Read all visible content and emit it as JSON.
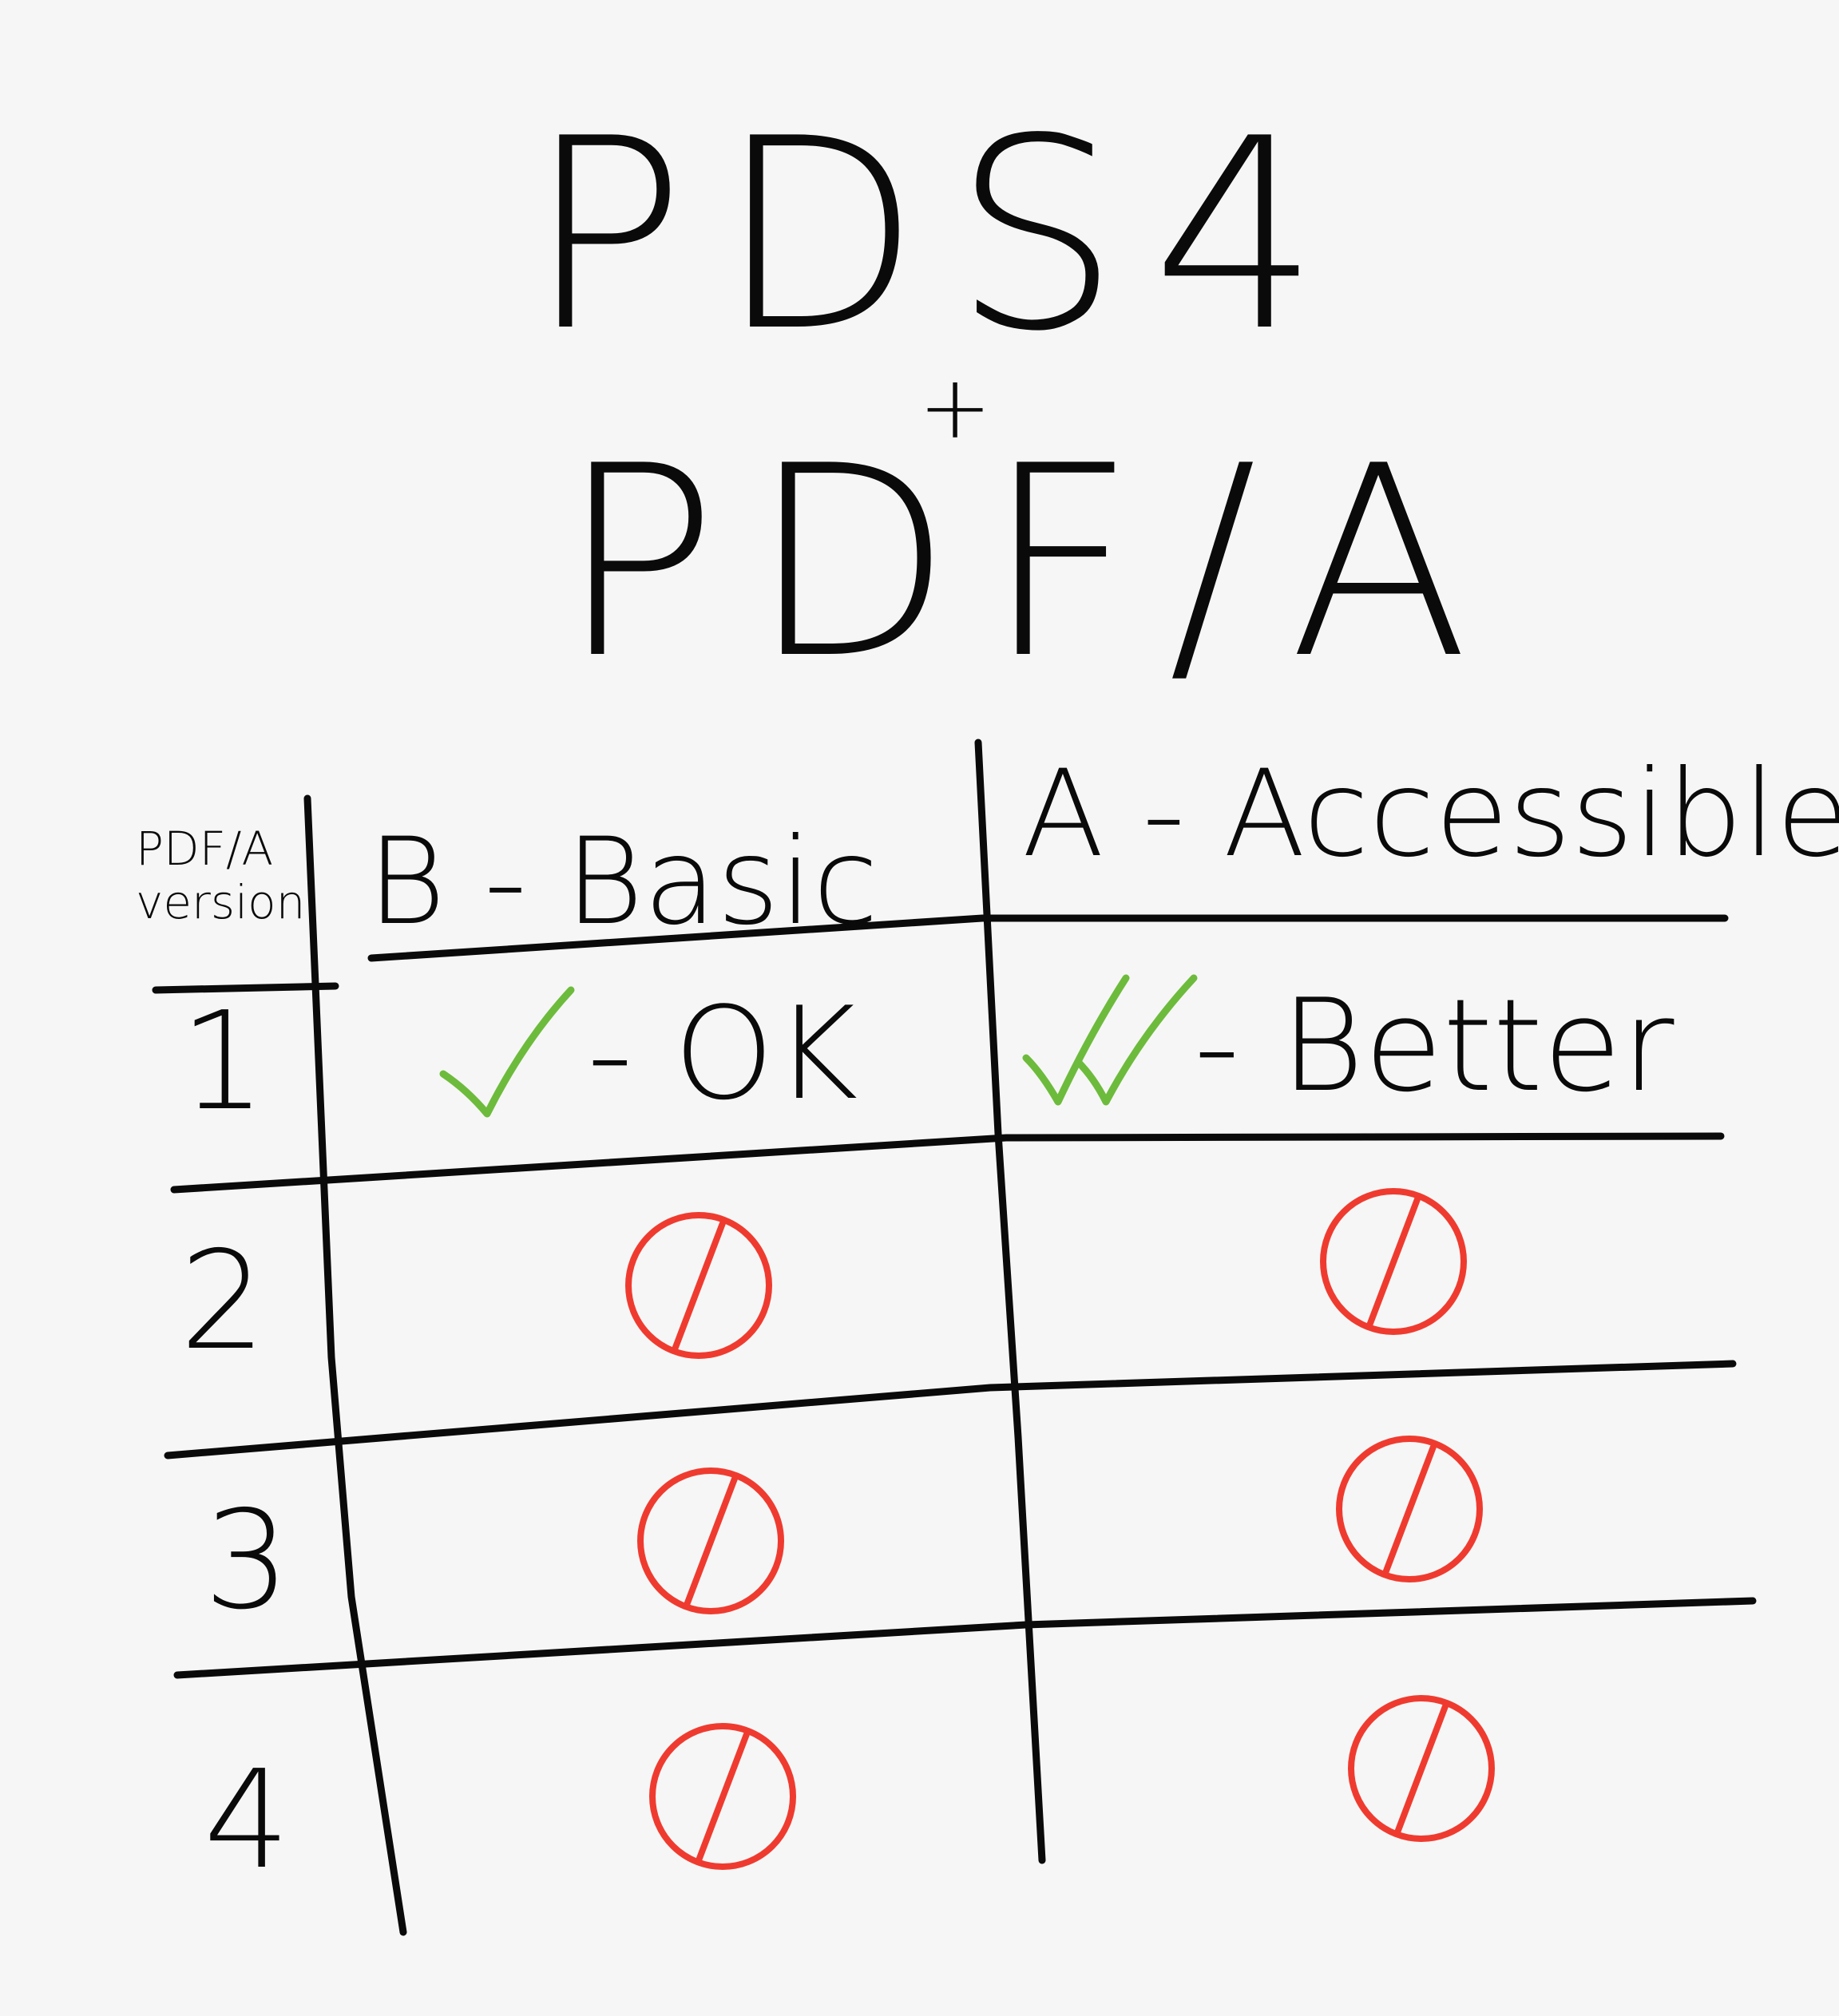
{
  "title": {
    "line1": "PDS4",
    "plus": "+",
    "line2": "PDF/A"
  },
  "table": {
    "header_version": "PDF/A\nversion",
    "columns": [
      "B - Basic",
      "A - Accessible"
    ],
    "rows": [
      {
        "version": "1",
        "basic": "- OK",
        "basic_icon": "check-icon",
        "accessible": "- Better",
        "accessible_icon": "double-check-icon"
      },
      {
        "version": "2",
        "basic_icon": "no-symbol-icon",
        "accessible_icon": "no-symbol-icon"
      },
      {
        "version": "3",
        "basic_icon": "no-symbol-icon",
        "accessible_icon": "no-symbol-icon"
      },
      {
        "version": "4",
        "basic_icon": "no-symbol-icon",
        "accessible_icon": "no-symbol-icon"
      }
    ]
  },
  "colors": {
    "ink": "#0a0a0a",
    "check": "#6dbb3c",
    "no_symbol": "#ef3b2f",
    "paper": "#f6f6f6"
  }
}
